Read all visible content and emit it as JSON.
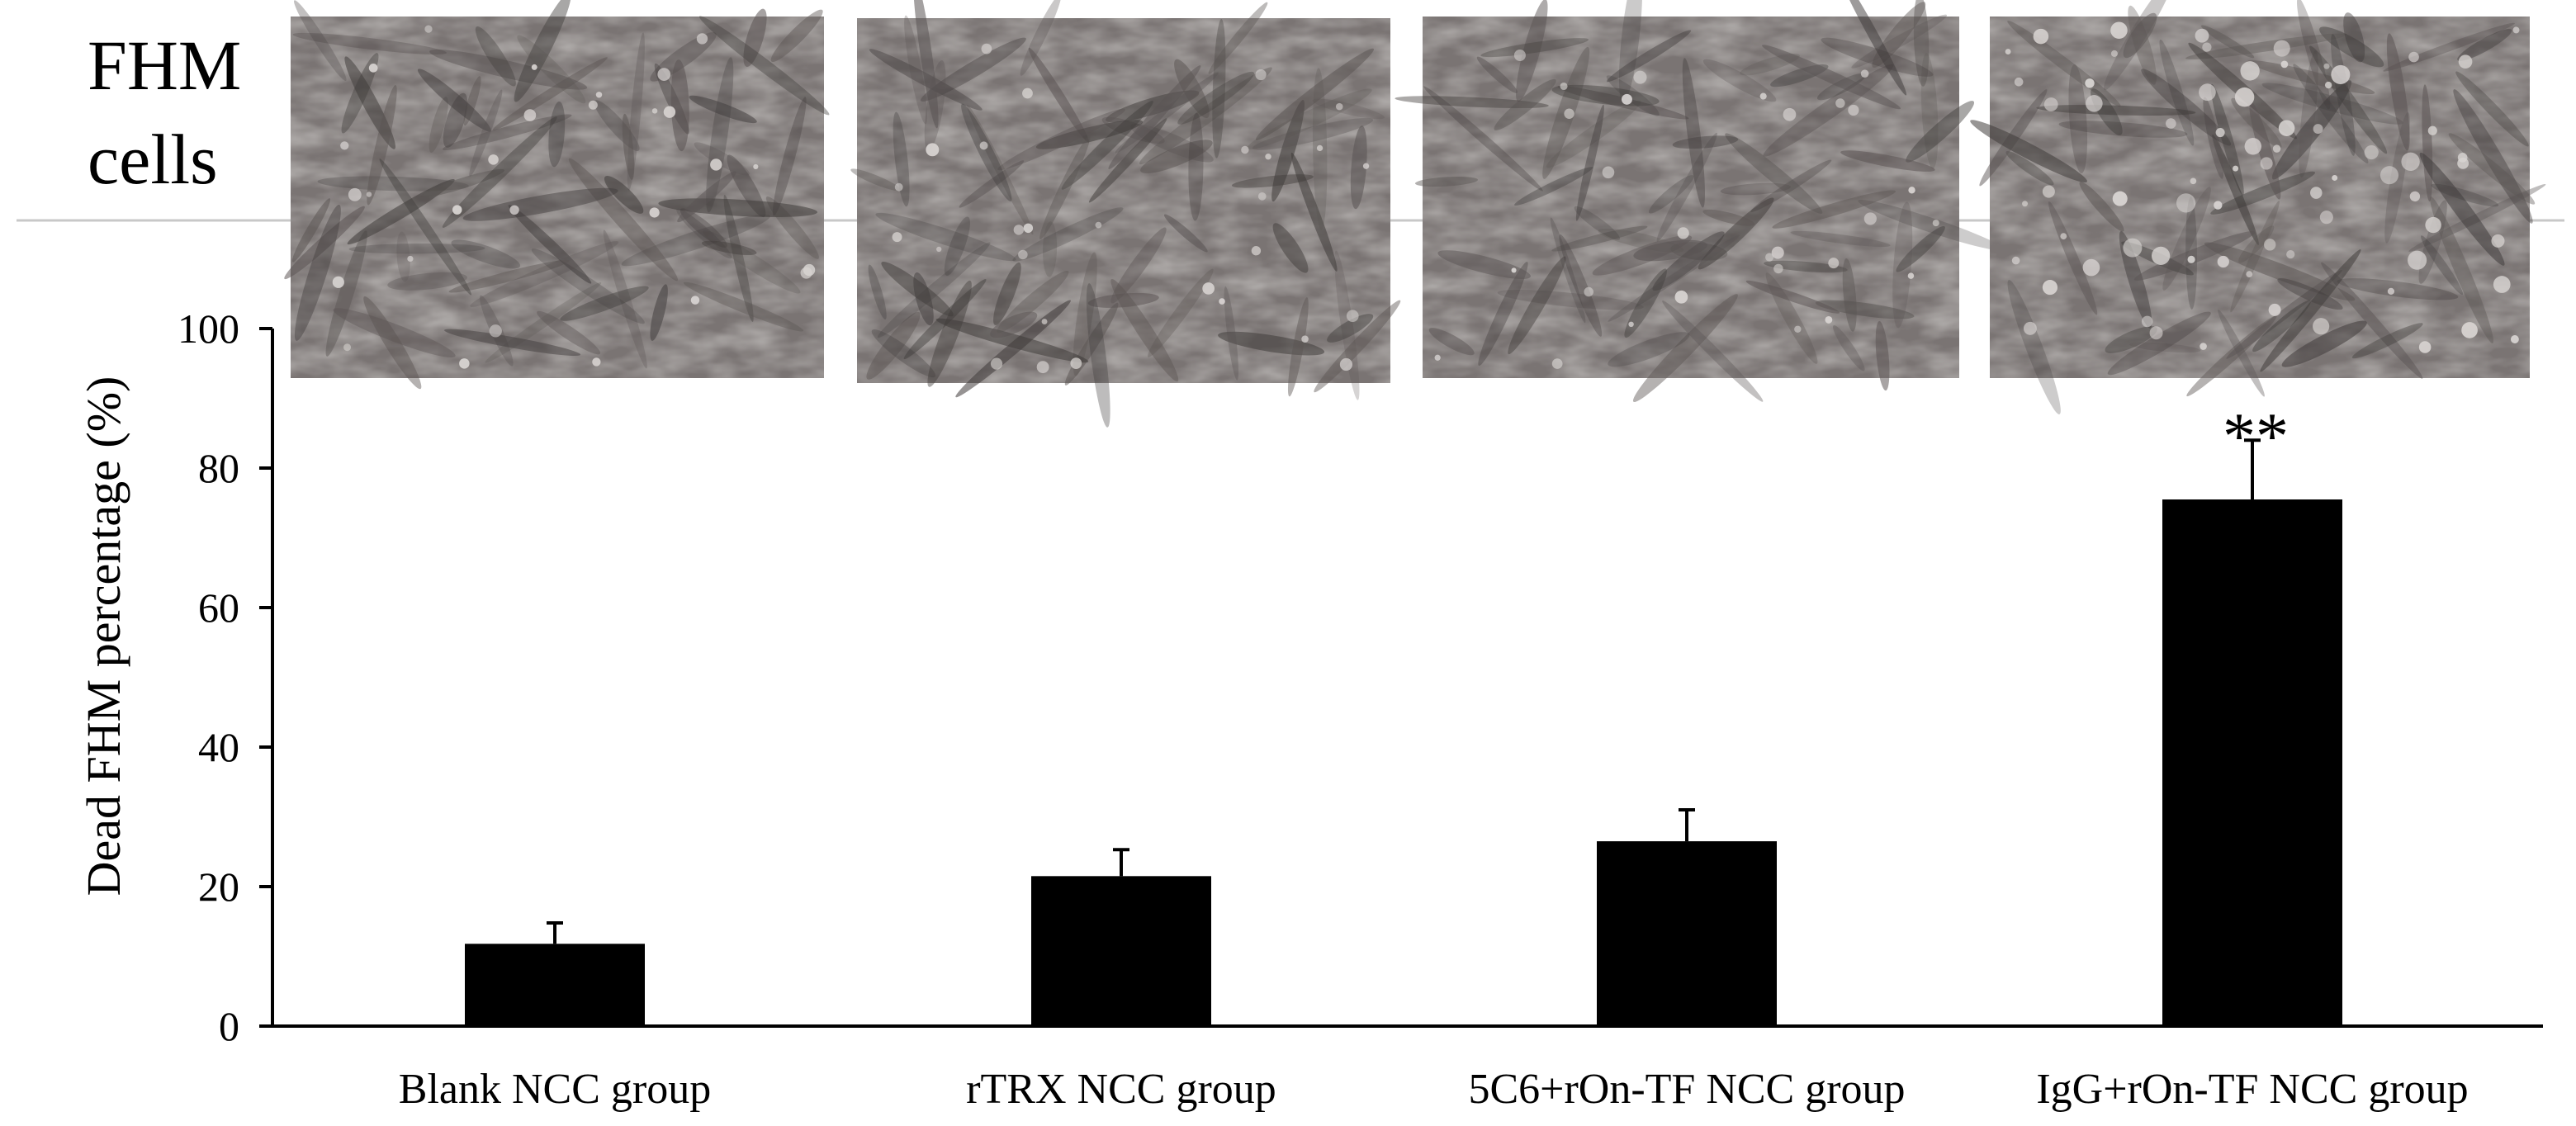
{
  "panel_label": {
    "line1": "FHM",
    "line2": "cells"
  },
  "colors": {
    "bar": "#000000",
    "axis": "#000000",
    "micrograph_base": "#7a7473",
    "micrograph_dark": "#3f3b3a",
    "micrograph_light": "#d8d4d2",
    "divider": "#c8c8c8"
  },
  "micrographs": [
    {
      "group": "Blank NCC group",
      "description_icon": "micrograph-image"
    },
    {
      "group": "rTRX NCC group",
      "description_icon": "micrograph-image"
    },
    {
      "group": "5C6+rOn-TF NCC group",
      "description_icon": "micrograph-image"
    },
    {
      "group": "IgG+rOn-TF NCC group",
      "description_icon": "micrograph-image"
    }
  ],
  "chart_data": {
    "type": "bar",
    "title": "",
    "xlabel": "",
    "ylabel": "Dead FHM percentage (%)",
    "ylim": [
      0,
      100
    ],
    "yticks": [
      "0",
      "20",
      "40",
      "60",
      "80",
      "100"
    ],
    "grid": false,
    "categories": [
      "Blank NCC group",
      "rTRX NCC group",
      "5C6+rOn-TF NCC group",
      "IgG+rOn-TF NCC group"
    ],
    "values": [
      11.8,
      21.5,
      26.5,
      75.5
    ],
    "error_bars": [
      3.0,
      3.8,
      4.5,
      8.5
    ],
    "annotations": [
      {
        "category": "IgG+rOn-TF NCC group",
        "text": "**"
      }
    ]
  }
}
